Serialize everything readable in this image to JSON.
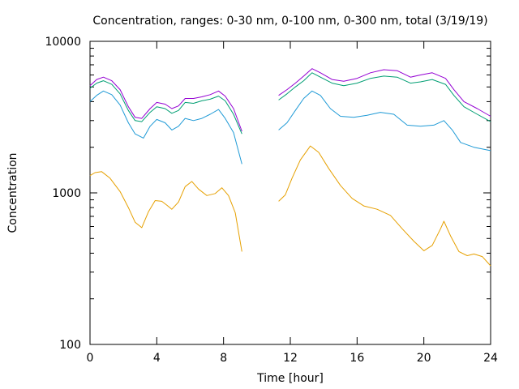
{
  "chart_data": {
    "type": "line",
    "title": "Concentration, ranges: 0-30 nm, 0-100 nm, 0-300 nm, total (3/19/19)",
    "xlabel": "Time [hour]",
    "ylabel": "Concentration",
    "xlim": [
      0,
      24
    ],
    "ylim": [
      100,
      10000
    ],
    "yscale": "log",
    "grid": false,
    "legend": "none",
    "xticks": [
      0,
      4,
      8,
      12,
      16,
      20,
      24
    ],
    "xtick_labels": [
      "0",
      "4",
      "8",
      "12",
      "16",
      "20",
      "24"
    ],
    "yticks": [
      100,
      1000,
      10000
    ],
    "ytick_labels": [
      "100",
      "1000",
      "10000"
    ],
    "series": [
      {
        "color": "#e6a000",
        "segments": [
          [
            [
              0,
              1300
            ],
            [
              0.3,
              1360
            ],
            [
              0.7,
              1380
            ],
            [
              1.2,
              1250
            ],
            [
              1.8,
              1020
            ],
            [
              2.3,
              800
            ],
            [
              2.7,
              640
            ],
            [
              3.1,
              590
            ],
            [
              3.5,
              750
            ],
            [
              3.9,
              890
            ],
            [
              4.3,
              880
            ],
            [
              4.6,
              830
            ],
            [
              4.9,
              780
            ],
            [
              5.3,
              870
            ],
            [
              5.7,
              1100
            ],
            [
              6.1,
              1190
            ],
            [
              6.5,
              1060
            ],
            [
              7.0,
              960
            ],
            [
              7.5,
              990
            ],
            [
              7.9,
              1080
            ],
            [
              8.3,
              960
            ],
            [
              8.7,
              740
            ],
            [
              9.1,
              410
            ]
          ],
          [
            [
              11.3,
              880
            ],
            [
              11.7,
              970
            ],
            [
              12.1,
              1250
            ],
            [
              12.6,
              1650
            ],
            [
              13.2,
              2040
            ],
            [
              13.7,
              1850
            ],
            [
              14.3,
              1450
            ],
            [
              15.0,
              1120
            ],
            [
              15.7,
              920
            ],
            [
              16.4,
              820
            ],
            [
              17.2,
              780
            ],
            [
              18.0,
              710
            ],
            [
              18.7,
              580
            ],
            [
              19.4,
              480
            ],
            [
              20.0,
              415
            ],
            [
              20.5,
              450
            ],
            [
              21.0,
              580
            ],
            [
              21.2,
              650
            ],
            [
              21.6,
              520
            ],
            [
              22.1,
              410
            ],
            [
              22.6,
              385
            ],
            [
              23.0,
              395
            ],
            [
              23.5,
              380
            ],
            [
              24.0,
              330
            ]
          ]
        ]
      },
      {
        "color": "#1f9ad6",
        "segments": [
          [
            [
              0,
              4000
            ],
            [
              0.4,
              4400
            ],
            [
              0.8,
              4700
            ],
            [
              1.3,
              4450
            ],
            [
              1.8,
              3800
            ],
            [
              2.3,
              2900
            ],
            [
              2.7,
              2450
            ],
            [
              3.2,
              2300
            ],
            [
              3.6,
              2750
            ],
            [
              4.0,
              3050
            ],
            [
              4.5,
              2900
            ],
            [
              4.9,
              2600
            ],
            [
              5.3,
              2750
            ],
            [
              5.7,
              3100
            ],
            [
              6.2,
              3000
            ],
            [
              6.7,
              3100
            ],
            [
              7.2,
              3300
            ],
            [
              7.7,
              3550
            ],
            [
              8.1,
              3100
            ],
            [
              8.6,
              2500
            ],
            [
              9.1,
              1550
            ]
          ],
          [
            [
              11.3,
              2600
            ],
            [
              11.8,
              2900
            ],
            [
              12.3,
              3500
            ],
            [
              12.8,
              4200
            ],
            [
              13.3,
              4700
            ],
            [
              13.8,
              4400
            ],
            [
              14.4,
              3600
            ],
            [
              15.0,
              3200
            ],
            [
              15.8,
              3150
            ],
            [
              16.6,
              3250
            ],
            [
              17.4,
              3400
            ],
            [
              18.2,
              3300
            ],
            [
              19.0,
              2800
            ],
            [
              19.8,
              2750
            ],
            [
              20.6,
              2800
            ],
            [
              21.2,
              3000
            ],
            [
              21.7,
              2600
            ],
            [
              22.2,
              2150
            ],
            [
              23.0,
              2000
            ],
            [
              24.0,
              1900
            ]
          ]
        ]
      },
      {
        "color": "#009e73",
        "segments": [
          [
            [
              0,
              4900
            ],
            [
              0.4,
              5300
            ],
            [
              0.8,
              5500
            ],
            [
              1.3,
              5200
            ],
            [
              1.8,
              4500
            ],
            [
              2.3,
              3500
            ],
            [
              2.7,
              3000
            ],
            [
              3.1,
              2950
            ],
            [
              3.6,
              3400
            ],
            [
              4.0,
              3700
            ],
            [
              4.5,
              3600
            ],
            [
              4.9,
              3350
            ],
            [
              5.3,
              3500
            ],
            [
              5.7,
              3950
            ],
            [
              6.2,
              3900
            ],
            [
              6.7,
              4050
            ],
            [
              7.2,
              4150
            ],
            [
              7.7,
              4350
            ],
            [
              8.1,
              4050
            ],
            [
              8.6,
              3300
            ],
            [
              9.1,
              2450
            ]
          ],
          [
            [
              11.3,
              4100
            ],
            [
              11.8,
              4500
            ],
            [
              12.3,
              5000
            ],
            [
              12.8,
              5500
            ],
            [
              13.3,
              6200
            ],
            [
              13.8,
              5800
            ],
            [
              14.5,
              5300
            ],
            [
              15.2,
              5100
            ],
            [
              16.0,
              5300
            ],
            [
              16.8,
              5700
            ],
            [
              17.6,
              5900
            ],
            [
              18.4,
              5800
            ],
            [
              19.2,
              5300
            ],
            [
              19.8,
              5400
            ],
            [
              20.5,
              5600
            ],
            [
              21.3,
              5200
            ],
            [
              21.8,
              4400
            ],
            [
              22.4,
              3700
            ],
            [
              23.2,
              3300
            ],
            [
              24.0,
              2950
            ]
          ]
        ]
      },
      {
        "color": "#9400d3",
        "segments": [
          [
            [
              0,
              5100
            ],
            [
              0.4,
              5600
            ],
            [
              0.8,
              5800
            ],
            [
              1.3,
              5500
            ],
            [
              1.8,
              4800
            ],
            [
              2.3,
              3700
            ],
            [
              2.7,
              3150
            ],
            [
              3.1,
              3100
            ],
            [
              3.6,
              3600
            ],
            [
              4.0,
              3950
            ],
            [
              4.5,
              3850
            ],
            [
              4.9,
              3600
            ],
            [
              5.3,
              3750
            ],
            [
              5.7,
              4200
            ],
            [
              6.2,
              4200
            ],
            [
              6.7,
              4300
            ],
            [
              7.2,
              4450
            ],
            [
              7.7,
              4700
            ],
            [
              8.1,
              4350
            ],
            [
              8.6,
              3600
            ],
            [
              9.1,
              2550
            ]
          ],
          [
            [
              11.3,
              4400
            ],
            [
              11.8,
              4800
            ],
            [
              12.3,
              5300
            ],
            [
              12.8,
              5900
            ],
            [
              13.3,
              6600
            ],
            [
              13.8,
              6200
            ],
            [
              14.5,
              5600
            ],
            [
              15.2,
              5450
            ],
            [
              16.0,
              5700
            ],
            [
              16.8,
              6200
            ],
            [
              17.6,
              6500
            ],
            [
              18.4,
              6400
            ],
            [
              19.2,
              5800
            ],
            [
              19.8,
              6000
            ],
            [
              20.5,
              6200
            ],
            [
              21.3,
              5700
            ],
            [
              21.8,
              4800
            ],
            [
              22.4,
              4000
            ],
            [
              23.2,
              3600
            ],
            [
              24.0,
              3200
            ]
          ]
        ]
      }
    ]
  }
}
